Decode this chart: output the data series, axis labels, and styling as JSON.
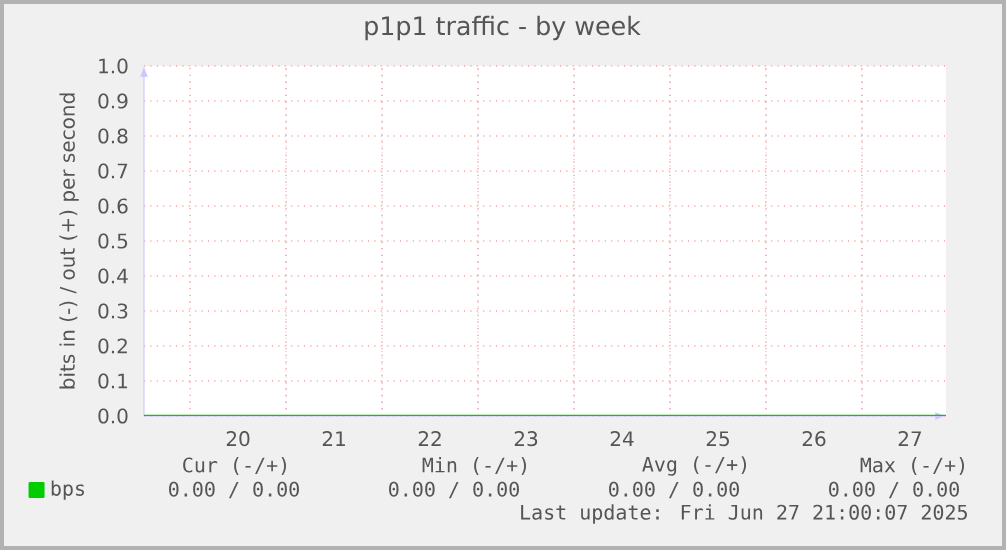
{
  "chart_data": {
    "type": "line",
    "title": "p1p1 traffic - by week",
    "ylabel": "bits in (-) / out (+) per second",
    "x": [
      19.02,
      27.375
    ],
    "series": [
      {
        "name": "bps",
        "color": "#00cc00",
        "values": [
          0,
          0
        ]
      }
    ],
    "xlim": [
      19.02,
      27.375
    ],
    "xticks": [
      {
        "value": 19.5,
        "label": null
      },
      20,
      {
        "value": 20.5,
        "label": null
      },
      21,
      {
        "value": 21.5,
        "label": null
      },
      22,
      {
        "value": 22.5,
        "label": null
      },
      23,
      {
        "value": 23.5,
        "label": null
      },
      24,
      {
        "value": 24.5,
        "label": null
      },
      25,
      {
        "value": 25.5,
        "label": null
      },
      26,
      {
        "value": 26.5,
        "label": null
      },
      27
    ],
    "ylim": [
      0,
      1
    ],
    "yticks": [
      {
        "value": 0,
        "label": "0.0"
      },
      0.1,
      0.2,
      0.3,
      0.4,
      0.5,
      0.6,
      0.7,
      0.8,
      0.9,
      {
        "value": 1,
        "label": "1.0"
      }
    ],
    "grid": true,
    "legend": "bottom",
    "annotations": [
      "Cur (-/+)",
      "Min (-/+)",
      "Avg (-/+)",
      "Max (-/+)",
      "0.00 /   0.00",
      "0.00 /   0.00",
      "0.00 /   0.00",
      "0.00 /   0.00",
      "Last update: Fri Jun 27 21:00:07 2025"
    ]
  }
}
